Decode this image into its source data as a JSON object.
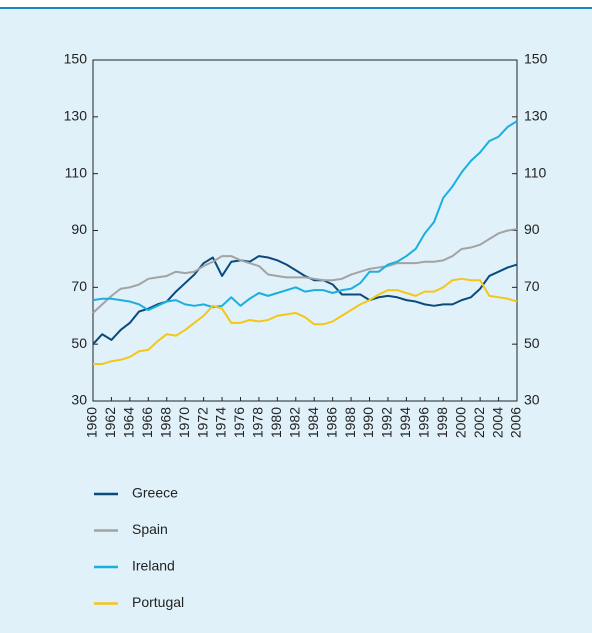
{
  "chart_data": {
    "type": "line",
    "x": [
      1960,
      1961,
      1962,
      1963,
      1964,
      1965,
      1966,
      1967,
      1968,
      1969,
      1970,
      1971,
      1972,
      1973,
      1974,
      1975,
      1976,
      1977,
      1978,
      1979,
      1980,
      1981,
      1982,
      1983,
      1984,
      1985,
      1986,
      1987,
      1988,
      1989,
      1990,
      1991,
      1992,
      1993,
      1994,
      1995,
      1996,
      1997,
      1998,
      1999,
      2000,
      2001,
      2002,
      2003,
      2004,
      2005,
      2006
    ],
    "xlim": [
      1960,
      2006
    ],
    "xticks": [
      1960,
      1962,
      1964,
      1966,
      1968,
      1970,
      1972,
      1974,
      1976,
      1978,
      1980,
      1982,
      1984,
      1986,
      1988,
      1990,
      1992,
      1994,
      1996,
      1998,
      2000,
      2002,
      2004,
      2006
    ],
    "ylim": [
      30,
      150
    ],
    "yticks": [
      30,
      50,
      70,
      90,
      110,
      130,
      150
    ],
    "y2lim": [
      30,
      150
    ],
    "y2ticks": [
      30,
      50,
      70,
      90,
      110,
      130,
      150
    ],
    "series": [
      {
        "name": "Greece",
        "color": "#0b4a7d",
        "values": [
          50,
          53.5,
          51.5,
          55,
          57.5,
          61.5,
          62.5,
          64,
          65,
          68.5,
          71.5,
          74.5,
          78.5,
          80.5,
          74,
          79,
          79.5,
          79,
          81,
          80.5,
          79.5,
          78,
          76,
          74,
          72.5,
          72.5,
          71,
          67.5,
          67.5,
          67.5,
          65.5,
          66.5,
          67,
          66.5,
          65.5,
          65,
          64,
          63.5,
          64,
          64,
          65.5,
          66.5,
          69.5,
          74,
          75.5,
          77,
          78
        ]
      },
      {
        "name": "Spain",
        "color": "#a3a3a3",
        "values": [
          61,
          64,
          67,
          69.5,
          70,
          71,
          73,
          73.5,
          74,
          75.5,
          75,
          75.5,
          77.5,
          79,
          81,
          81,
          79.5,
          78.5,
          77.5,
          74.5,
          74,
          73.5,
          73.5,
          73.5,
          73,
          72.5,
          72.5,
          73,
          74.5,
          75.5,
          76.5,
          77,
          77.5,
          78.5,
          78.5,
          78.5,
          79,
          79,
          79.5,
          81,
          83.5,
          84,
          85,
          87,
          89,
          90,
          90.5
        ]
      },
      {
        "name": "Ireland",
        "color": "#1aafe0",
        "values": [
          65.5,
          66,
          66,
          65.5,
          65,
          64,
          62,
          63.5,
          65,
          65.5,
          64,
          63.5,
          64,
          63,
          63.5,
          66.5,
          63.5,
          66,
          68,
          67,
          68,
          69,
          70,
          68.5,
          69,
          69,
          68,
          69,
          69.5,
          71.5,
          75.5,
          75.5,
          78,
          79,
          81,
          83.5,
          89,
          93,
          101.5,
          105.5,
          110.5,
          114.5,
          117.5,
          121.5,
          123,
          126.5,
          128.5
        ]
      },
      {
        "name": "Portugal",
        "color": "#f5c61a",
        "values": [
          43,
          43,
          44,
          44.5,
          45.5,
          47.5,
          48,
          51,
          53.5,
          53,
          55,
          57.5,
          60,
          63.5,
          62.5,
          57.5,
          57.5,
          58.5,
          58,
          58.5,
          60,
          60.5,
          61,
          59.5,
          57,
          57,
          58,
          60,
          62,
          64,
          65.5,
          67.5,
          69,
          69,
          68,
          67,
          68.5,
          68.5,
          70,
          72.5,
          73,
          72.5,
          72.5,
          67,
          66.5,
          66,
          65
        ]
      }
    ]
  }
}
